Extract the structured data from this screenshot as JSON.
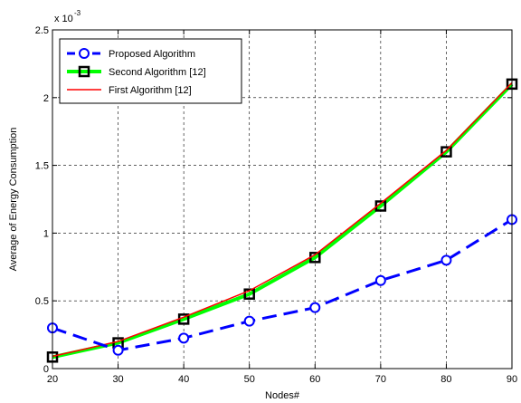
{
  "chart_data": {
    "type": "line",
    "title": "",
    "xlabel": "Nodes#",
    "ylabel": "Average of Energy Consumption",
    "y_exponent_label": "x 10",
    "y_exponent_power": "-3",
    "xlim": [
      20,
      90
    ],
    "ylim": [
      0,
      2.5
    ],
    "x_ticks": [
      20,
      30,
      40,
      50,
      60,
      70,
      80,
      90
    ],
    "y_ticks": [
      0,
      0.5,
      1,
      1.5,
      2,
      2.5
    ],
    "y_tick_labels": [
      "0",
      "0.5",
      "1",
      "1.5",
      "2",
      "2.5"
    ],
    "grid": true,
    "legend_position": "top-left",
    "x": [
      20,
      30,
      40,
      50,
      60,
      70,
      80,
      90
    ],
    "series": [
      {
        "name": "Proposed Algorithm",
        "values": [
          0.3,
          0.135,
          0.225,
          0.35,
          0.45,
          0.65,
          0.8,
          1.1
        ],
        "color": "#0000ff",
        "line_style": "dashed",
        "marker": "circle"
      },
      {
        "name": "Second Algorithm [12]",
        "values": [
          0.085,
          0.19,
          0.365,
          0.55,
          0.82,
          1.2,
          1.6,
          2.1
        ],
        "color": "#00ff00",
        "line_style": "solid",
        "marker": "square"
      },
      {
        "name": "First Algorithm [12]",
        "values": [
          0.09,
          0.2,
          0.38,
          0.575,
          0.84,
          1.22,
          1.61,
          2.11
        ],
        "color": "#ff0000",
        "line_style": "solid",
        "marker": "none"
      }
    ]
  }
}
